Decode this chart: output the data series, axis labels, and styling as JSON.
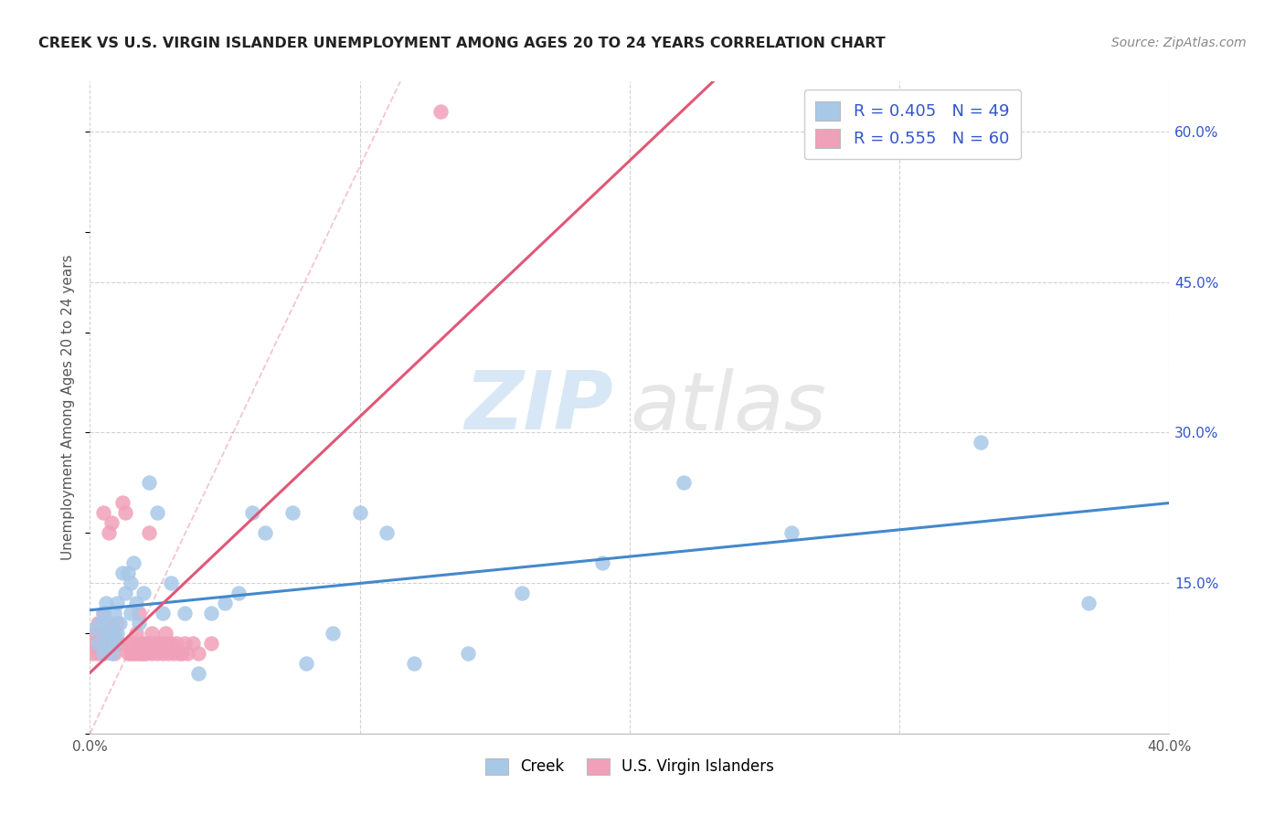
{
  "title": "CREEK VS U.S. VIRGIN ISLANDER UNEMPLOYMENT AMONG AGES 20 TO 24 YEARS CORRELATION CHART",
  "source": "Source: ZipAtlas.com",
  "ylabel": "Unemployment Among Ages 20 to 24 years",
  "xlim": [
    0.0,
    0.4
  ],
  "ylim": [
    0.0,
    0.65
  ],
  "yticks_right": [
    0.0,
    0.15,
    0.3,
    0.45,
    0.6
  ],
  "ytick_labels_right": [
    "",
    "15.0%",
    "30.0%",
    "45.0%",
    "60.0%"
  ],
  "creek_R": 0.405,
  "creek_N": 49,
  "virgin_R": 0.555,
  "virgin_N": 60,
  "creek_color": "#a8c8e8",
  "creek_line_color": "#4488cc",
  "virgin_color": "#f0a0b8",
  "virgin_line_color": "#e05878",
  "legend_R_color": "#3355cc",
  "background_color": "#ffffff",
  "grid_color": "#cccccc",
  "creek_x": [
    0.002,
    0.003,
    0.004,
    0.005,
    0.005,
    0.006,
    0.006,
    0.007,
    0.007,
    0.008,
    0.008,
    0.009,
    0.009,
    0.01,
    0.01,
    0.011,
    0.012,
    0.013,
    0.014,
    0.015,
    0.015,
    0.016,
    0.017,
    0.018,
    0.02,
    0.022,
    0.025,
    0.027,
    0.03,
    0.035,
    0.04,
    0.045,
    0.05,
    0.055,
    0.06,
    0.065,
    0.075,
    0.08,
    0.09,
    0.1,
    0.11,
    0.12,
    0.14,
    0.16,
    0.19,
    0.22,
    0.26,
    0.33,
    0.37
  ],
  "creek_y": [
    0.105,
    0.09,
    0.11,
    0.12,
    0.08,
    0.1,
    0.13,
    0.09,
    0.11,
    0.08,
    0.1,
    0.12,
    0.09,
    0.1,
    0.13,
    0.11,
    0.16,
    0.14,
    0.16,
    0.15,
    0.12,
    0.17,
    0.13,
    0.11,
    0.14,
    0.25,
    0.22,
    0.12,
    0.15,
    0.12,
    0.06,
    0.12,
    0.13,
    0.14,
    0.22,
    0.2,
    0.22,
    0.07,
    0.1,
    0.22,
    0.2,
    0.07,
    0.08,
    0.14,
    0.17,
    0.25,
    0.2,
    0.29,
    0.13
  ],
  "virgin_x": [
    0.001,
    0.002,
    0.002,
    0.003,
    0.003,
    0.004,
    0.004,
    0.005,
    0.005,
    0.005,
    0.006,
    0.006,
    0.007,
    0.007,
    0.008,
    0.008,
    0.009,
    0.009,
    0.01,
    0.01,
    0.011,
    0.012,
    0.013,
    0.014,
    0.015,
    0.015,
    0.016,
    0.016,
    0.017,
    0.017,
    0.018,
    0.018,
    0.019,
    0.019,
    0.02,
    0.02,
    0.021,
    0.022,
    0.022,
    0.023,
    0.023,
    0.024,
    0.025,
    0.025,
    0.026,
    0.027,
    0.028,
    0.028,
    0.029,
    0.03,
    0.031,
    0.032,
    0.033,
    0.034,
    0.035,
    0.036,
    0.038,
    0.04,
    0.045,
    0.13
  ],
  "virgin_y": [
    0.08,
    0.1,
    0.09,
    0.08,
    0.11,
    0.09,
    0.1,
    0.08,
    0.12,
    0.22,
    0.1,
    0.11,
    0.09,
    0.2,
    0.21,
    0.09,
    0.08,
    0.1,
    0.09,
    0.11,
    0.09,
    0.23,
    0.22,
    0.08,
    0.08,
    0.09,
    0.08,
    0.09,
    0.08,
    0.1,
    0.08,
    0.12,
    0.08,
    0.09,
    0.08,
    0.09,
    0.08,
    0.2,
    0.09,
    0.1,
    0.08,
    0.09,
    0.08,
    0.09,
    0.09,
    0.08,
    0.09,
    0.1,
    0.08,
    0.09,
    0.08,
    0.09,
    0.08,
    0.08,
    0.09,
    0.08,
    0.09,
    0.08,
    0.09,
    0.62
  ]
}
